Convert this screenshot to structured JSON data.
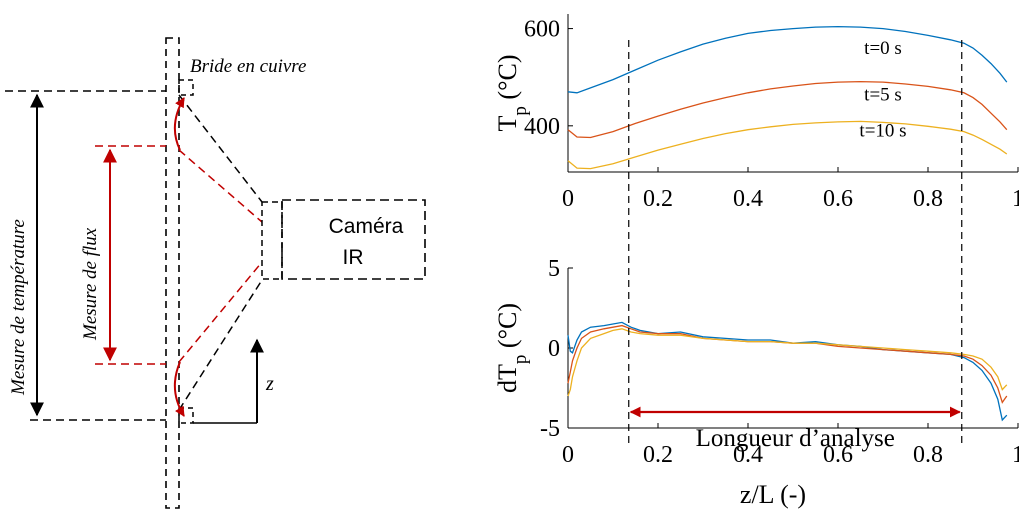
{
  "colors": {
    "series_t0": "#0072BD",
    "series_t5": "#D95319",
    "series_t10": "#EDB120",
    "annotation_red": "#C00000",
    "black": "#000000"
  },
  "diagram": {
    "bride_label": "Bride en cuivre",
    "temperature_label": "Mesure de température",
    "flux_label": "Mesure de flux",
    "camera_label_line1": "Caméra",
    "camera_label_line2": "IR",
    "axis_label": "z"
  },
  "chart_data": [
    {
      "type": "line",
      "ylabel_main": "T",
      "ylabel_sub": "p",
      "ylabel_unit": "(°C)",
      "xlim": [
        0,
        1
      ],
      "ylim": [
        305,
        630
      ],
      "x_ticks": [
        "0",
        "0.2",
        "0.4",
        "0.6",
        "0.8",
        "1"
      ],
      "y_ticks": [
        "400",
        "600"
      ],
      "y_tick_values": [
        400,
        600
      ],
      "x_tick_values": [
        0,
        0.2,
        0.4,
        0.6,
        0.8,
        1
      ],
      "series": [
        {
          "name": "t=0 s",
          "color_key": "series_t0",
          "x": [
            0,
            0.02,
            0.05,
            0.1,
            0.15,
            0.2,
            0.25,
            0.3,
            0.35,
            0.4,
            0.45,
            0.5,
            0.55,
            0.6,
            0.65,
            0.7,
            0.75,
            0.8,
            0.85,
            0.88,
            0.9,
            0.92,
            0.94,
            0.96,
            0.975
          ],
          "y": [
            470,
            468,
            478,
            495,
            515,
            535,
            552,
            568,
            580,
            590,
            596,
            600,
            603,
            604,
            603,
            600,
            594,
            586,
            577,
            570,
            560,
            545,
            528,
            508,
            490
          ]
        },
        {
          "name": "t=5 s",
          "color_key": "series_t5",
          "x": [
            0,
            0.02,
            0.05,
            0.1,
            0.15,
            0.2,
            0.25,
            0.3,
            0.35,
            0.4,
            0.45,
            0.5,
            0.55,
            0.6,
            0.65,
            0.7,
            0.75,
            0.8,
            0.85,
            0.88,
            0.9,
            0.92,
            0.94,
            0.96,
            0.975
          ],
          "y": [
            392,
            377,
            376,
            388,
            405,
            420,
            434,
            447,
            458,
            468,
            476,
            482,
            487,
            490,
            491,
            490,
            486,
            481,
            474,
            468,
            458,
            444,
            426,
            408,
            392
          ]
        },
        {
          "name": "t=10 s",
          "color_key": "series_t10",
          "x": [
            0,
            0.02,
            0.05,
            0.1,
            0.15,
            0.2,
            0.25,
            0.3,
            0.35,
            0.4,
            0.45,
            0.5,
            0.55,
            0.6,
            0.65,
            0.7,
            0.75,
            0.8,
            0.85,
            0.88,
            0.9,
            0.92,
            0.94,
            0.96,
            0.975
          ],
          "y": [
            328,
            313,
            312,
            322,
            336,
            350,
            362,
            374,
            384,
            392,
            398,
            403,
            406,
            408,
            409,
            407,
            404,
            399,
            393,
            388,
            381,
            372,
            362,
            352,
            342
          ]
        }
      ],
      "series_labels": [
        "t=0 s",
        "t=5 s",
        "t=10 s"
      ]
    },
    {
      "type": "line",
      "ylabel_main": "dT",
      "ylabel_sub": "p",
      "ylabel_unit": "(°C)",
      "xlabel": "z/L (-)",
      "xlim": [
        0,
        1
      ],
      "ylim": [
        -5,
        5
      ],
      "x_ticks": [
        "0",
        "0.2",
        "0.4",
        "0.6",
        "0.8",
        "1"
      ],
      "y_ticks": [
        "5",
        "0",
        "-5"
      ],
      "y_tick_values": [
        5,
        0,
        -5
      ],
      "x_tick_values": [
        0,
        0.2,
        0.4,
        0.6,
        0.8,
        1
      ],
      "annotation": "Longueur d’analyse",
      "analysis_range": [
        0.135,
        0.875
      ],
      "series": [
        {
          "color_key": "series_t0",
          "x": [
            0,
            0.005,
            0.01,
            0.02,
            0.03,
            0.05,
            0.08,
            0.1,
            0.12,
            0.14,
            0.16,
            0.2,
            0.25,
            0.3,
            0.35,
            0.4,
            0.45,
            0.5,
            0.55,
            0.6,
            0.65,
            0.7,
            0.75,
            0.8,
            0.85,
            0.88,
            0.9,
            0.92,
            0.94,
            0.955,
            0.965,
            0.975
          ],
          "y": [
            0.8,
            -0.2,
            -0.3,
            0.5,
            1.0,
            1.3,
            1.4,
            1.5,
            1.6,
            1.3,
            1.1,
            0.9,
            1.0,
            0.7,
            0.6,
            0.5,
            0.5,
            0.3,
            0.4,
            0.2,
            0.1,
            -0.1,
            -0.2,
            -0.3,
            -0.4,
            -0.6,
            -0.9,
            -1.4,
            -2.2,
            -3.2,
            -4.5,
            -4.2
          ]
        },
        {
          "color_key": "series_t5",
          "x": [
            0,
            0.005,
            0.01,
            0.02,
            0.03,
            0.05,
            0.08,
            0.1,
            0.12,
            0.14,
            0.16,
            0.2,
            0.25,
            0.3,
            0.35,
            0.4,
            0.45,
            0.5,
            0.55,
            0.6,
            0.65,
            0.7,
            0.75,
            0.8,
            0.85,
            0.88,
            0.9,
            0.92,
            0.94,
            0.955,
            0.965,
            0.975
          ],
          "y": [
            -2.2,
            -1.5,
            -0.8,
            0.0,
            0.6,
            1.0,
            1.2,
            1.3,
            1.4,
            1.2,
            1.0,
            0.9,
            0.9,
            0.6,
            0.5,
            0.4,
            0.4,
            0.3,
            0.3,
            0.1,
            0.0,
            -0.1,
            -0.2,
            -0.3,
            -0.4,
            -0.5,
            -0.7,
            -1.1,
            -1.7,
            -2.5,
            -3.4,
            -3.0
          ]
        },
        {
          "color_key": "series_t10",
          "x": [
            0,
            0.005,
            0.01,
            0.02,
            0.03,
            0.05,
            0.08,
            0.1,
            0.12,
            0.14,
            0.16,
            0.2,
            0.25,
            0.3,
            0.35,
            0.4,
            0.45,
            0.5,
            0.55,
            0.6,
            0.65,
            0.7,
            0.75,
            0.8,
            0.85,
            0.88,
            0.9,
            0.92,
            0.94,
            0.955,
            0.965,
            0.975
          ],
          "y": [
            -3.0,
            -2.6,
            -1.8,
            -0.8,
            0.0,
            0.6,
            0.9,
            1.1,
            1.2,
            1.0,
            0.9,
            0.8,
            0.8,
            0.6,
            0.5,
            0.4,
            0.4,
            0.3,
            0.3,
            0.2,
            0.1,
            0.0,
            -0.1,
            -0.2,
            -0.3,
            -0.4,
            -0.5,
            -0.7,
            -1.2,
            -1.8,
            -2.6,
            -2.3
          ]
        }
      ]
    }
  ]
}
